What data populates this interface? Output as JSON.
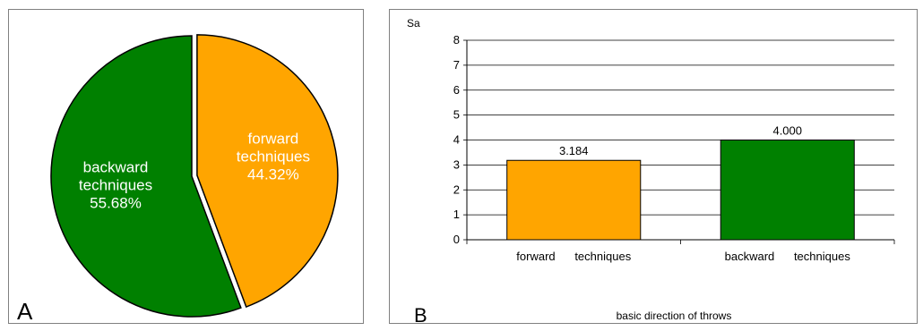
{
  "panels": {
    "a_letter": "A",
    "b_letter": "B"
  },
  "chart_data": [
    {
      "type": "pie",
      "slices": [
        {
          "label_line1": "forward",
          "label_line2": "techniques",
          "percent_text": "44.32%",
          "value": 44.32,
          "color": "#FFA500",
          "exploded": true
        },
        {
          "label_line1": "backward",
          "label_line2": "techniques",
          "percent_text": "55.68%",
          "value": 55.68,
          "color": "#008000",
          "exploded": false
        }
      ],
      "label_color": "#ffffff"
    },
    {
      "type": "bar",
      "categories": [
        "forward      techniques",
        "backward      techniques"
      ],
      "values": [
        3.184,
        4.0
      ],
      "value_labels": [
        "3.184",
        "4.000"
      ],
      "colors": [
        "#FFA500",
        "#008000"
      ],
      "ylabel": "Sa",
      "xlabel": "basic direction of throws",
      "ylim": [
        0,
        8
      ],
      "yticks": [
        "0",
        "1",
        "2",
        "3",
        "4",
        "5",
        "6",
        "7",
        "8"
      ],
      "grid": true
    }
  ]
}
